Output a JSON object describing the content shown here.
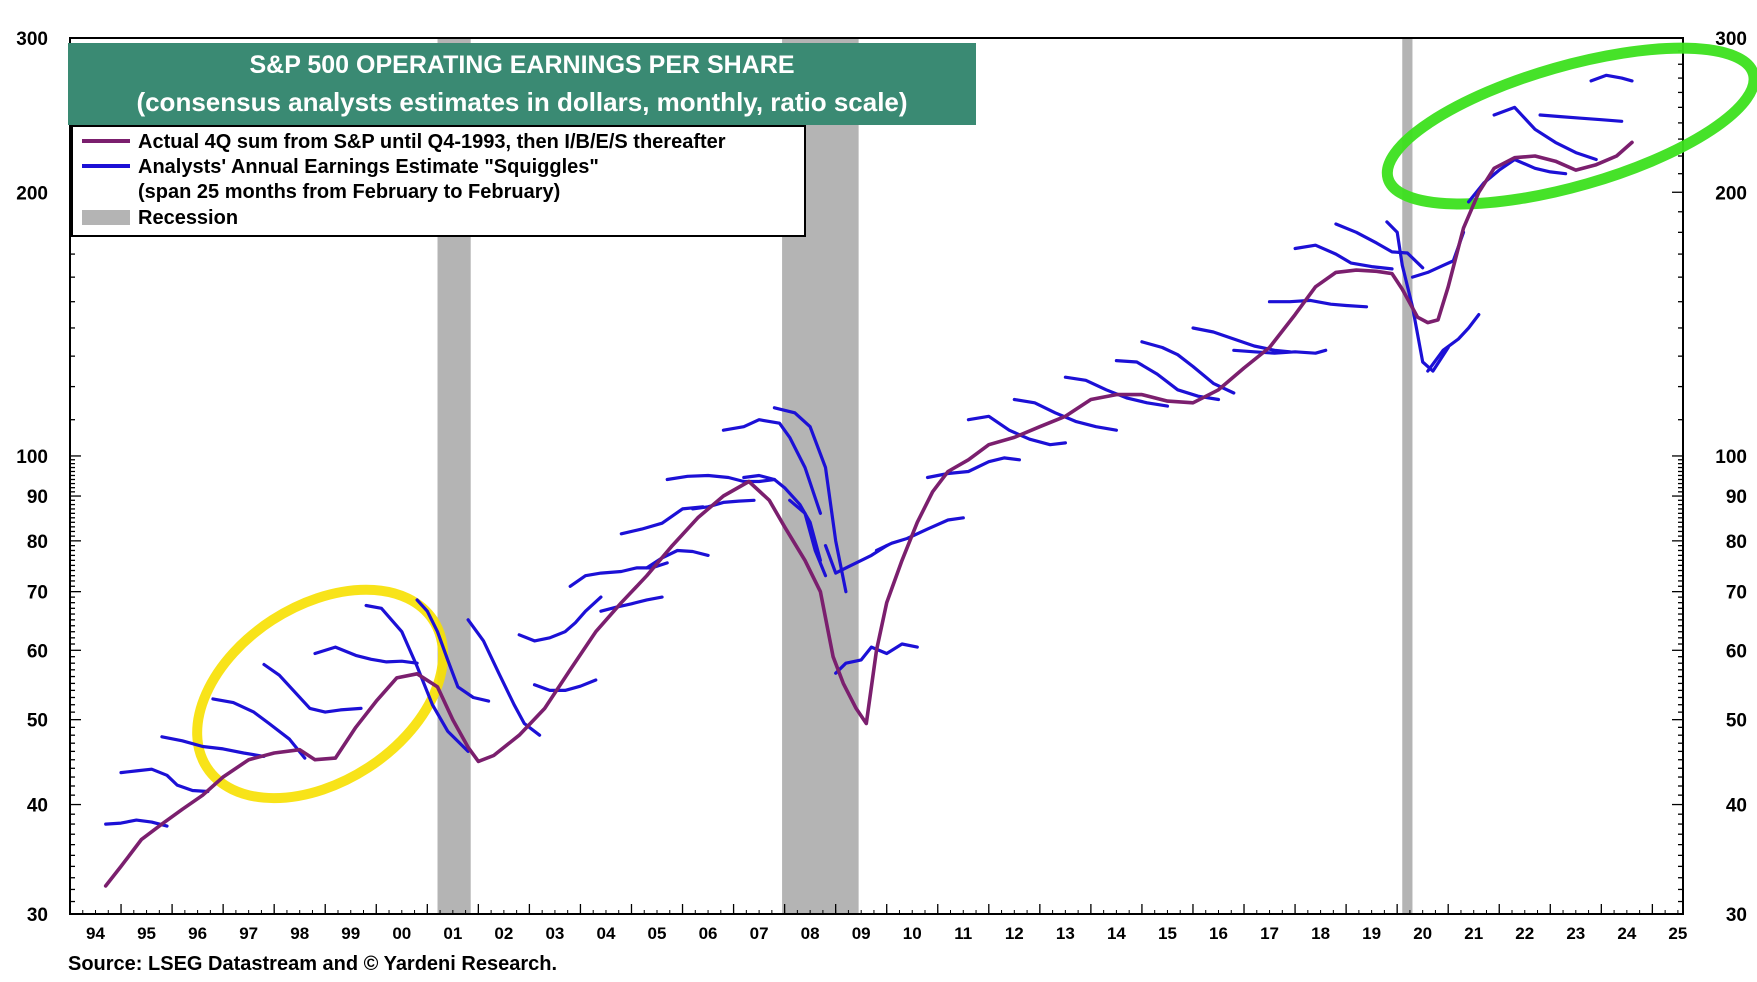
{
  "chart_data": {
    "type": "line",
    "title": "S&P 500 OPERATING EARNINGS PER SHARE",
    "subtitle": "(consensus analysts estimates in dollars, monthly, ratio scale)",
    "source": "Source: LSEG Datastream and © Yardeni Research.",
    "y_scale": "log",
    "ylim": [
      30,
      300
    ],
    "y_ticks": [
      30,
      40,
      50,
      60,
      70,
      80,
      90,
      100,
      200,
      300
    ],
    "y_tick_labels": [
      "30",
      "40",
      "50",
      "60",
      "70",
      "80",
      "90",
      "100",
      "200",
      "300"
    ],
    "xlim": [
      1994.0,
      2025.6
    ],
    "x_tick_labels": [
      "94",
      "95",
      "96",
      "97",
      "98",
      "99",
      "00",
      "01",
      "02",
      "03",
      "04",
      "05",
      "06",
      "07",
      "08",
      "09",
      "10",
      "11",
      "12",
      "13",
      "14",
      "15",
      "16",
      "17",
      "18",
      "19",
      "20",
      "21",
      "22",
      "23",
      "24",
      "25"
    ],
    "grid": false,
    "legend_position": "top-left",
    "legend": [
      {
        "label": "Actual 4Q sum from S&P until Q4-1993, then I/B/E/S thereafter",
        "kind": "line",
        "color": "#7b1f6e"
      },
      {
        "label": "Analysts' Annual Earnings Estimate \"Squiggles\"",
        "kind": "line",
        "color": "#1c10d6"
      },
      {
        "label": "(span 25 months from February to February)",
        "kind": "none",
        "color": ""
      },
      {
        "label": "Recession",
        "kind": "box",
        "color": "#b4b4b4"
      }
    ],
    "recessions": [
      [
        2001.2,
        2001.85
      ],
      [
        2007.95,
        2009.45
      ],
      [
        2020.1,
        2020.3
      ]
    ],
    "actual": {
      "name": "Actual 4Q sum from S&P until Q4-1993, then I/B/E/S thereafter",
      "color": "#7b1f6e",
      "x": [
        1994.7,
        1995.0,
        1995.4,
        1995.8,
        1996.2,
        1996.6,
        1997.0,
        1997.5,
        1998.0,
        1998.5,
        1998.8,
        1999.2,
        1999.6,
        2000.0,
        2000.4,
        2000.8,
        2001.2,
        2001.5,
        2001.8,
        2002.0,
        2002.3,
        2002.8,
        2003.3,
        2003.8,
        2004.3,
        2004.8,
        2005.3,
        2005.8,
        2006.3,
        2006.8,
        2007.3,
        2007.7,
        2008.0,
        2008.4,
        2008.7,
        2008.95,
        2009.15,
        2009.4,
        2009.6,
        2009.8,
        2010.0,
        2010.3,
        2010.6,
        2010.9,
        2011.2,
        2011.6,
        2012.0,
        2012.5,
        2013.0,
        2013.5,
        2014.0,
        2014.5,
        2015.0,
        2015.5,
        2016.0,
        2016.5,
        2017.0,
        2017.5,
        2018.0,
        2018.4,
        2018.8,
        2019.2,
        2019.6,
        2019.9,
        2020.1,
        2020.4,
        2020.6,
        2020.8,
        2021.0,
        2021.3,
        2021.6,
        2021.9,
        2022.3,
        2022.7,
        2023.1,
        2023.5,
        2023.9,
        2024.3,
        2024.6
      ],
      "y": [
        32.3,
        34.0,
        36.5,
        38.0,
        39.5,
        41.0,
        43.0,
        45.0,
        45.8,
        46.2,
        45.0,
        45.2,
        49.0,
        52.5,
        55.8,
        56.4,
        54.5,
        50.0,
        46.5,
        44.8,
        45.5,
        48.0,
        51.5,
        57.0,
        63.0,
        68.0,
        73.0,
        79.0,
        85.0,
        90.0,
        93.5,
        89.0,
        83.0,
        76.0,
        70.0,
        59.0,
        55.0,
        51.5,
        49.5,
        60.0,
        68.0,
        76.0,
        84.0,
        91.0,
        96.0,
        99.0,
        103.0,
        105.0,
        108.0,
        111.0,
        116.0,
        117.5,
        117.5,
        115.5,
        115.0,
        119.0,
        126.0,
        133.0,
        145.0,
        156.0,
        162.0,
        163.0,
        162.5,
        161.5,
        155.0,
        144.0,
        142.0,
        143.0,
        156.0,
        182.0,
        200.0,
        213.0,
        219.0,
        220.0,
        217.0,
        212.0,
        215.0,
        220.0,
        228.0
      ]
    },
    "squiggles": [
      {
        "x": [
          1994.7,
          1995.0,
          1995.3,
          1995.6,
          1995.9
        ],
        "y": [
          38.0,
          38.1,
          38.4,
          38.2,
          37.8
        ]
      },
      {
        "x": [
          1995.0,
          1995.3,
          1995.6,
          1995.9,
          1996.1,
          1996.4,
          1996.7
        ],
        "y": [
          43.5,
          43.7,
          43.9,
          43.2,
          42.1,
          41.5,
          41.4
        ]
      },
      {
        "x": [
          1995.8,
          1996.2,
          1996.6,
          1997.0,
          1997.4,
          1997.8
        ],
        "y": [
          47.8,
          47.3,
          46.6,
          46.3,
          45.8,
          45.4
        ]
      },
      {
        "x": [
          1996.8,
          1997.2,
          1997.6,
          1997.9,
          1998.3,
          1998.6
        ],
        "y": [
          52.8,
          52.3,
          51.0,
          49.5,
          47.5,
          45.2
        ]
      },
      {
        "x": [
          1997.8,
          1998.1,
          1998.4,
          1998.7,
          1999.0,
          1999.3,
          1999.7
        ],
        "y": [
          57.8,
          56.2,
          53.8,
          51.5,
          51.0,
          51.3,
          51.5
        ]
      },
      {
        "x": [
          1998.8,
          1999.2,
          1999.6,
          1999.9,
          2000.2,
          2000.5,
          2000.8
        ],
        "y": [
          59.5,
          60.5,
          59.2,
          58.6,
          58.2,
          58.3,
          58.0
        ]
      },
      {
        "x": [
          1999.8,
          2000.1,
          2000.5,
          2000.8,
          2001.1,
          2001.4,
          2001.8
        ],
        "y": [
          67.5,
          67.0,
          63.0,
          57.5,
          52.0,
          48.5,
          46.0
        ]
      },
      {
        "x": [
          2000.8,
          2001.0,
          2001.2,
          2001.4,
          2001.6,
          2001.9,
          2002.2
        ],
        "y": [
          68.5,
          66.5,
          63.0,
          58.5,
          54.5,
          53.0,
          52.5
        ]
      },
      {
        "x": [
          2001.8,
          2002.1,
          2002.4,
          2002.7,
          2002.9,
          2003.2
        ],
        "y": [
          65.0,
          61.5,
          56.5,
          52.0,
          49.5,
          48.0
        ]
      },
      {
        "x": [
          2002.8,
          2003.1,
          2003.4,
          2003.7,
          2003.9,
          2004.1,
          2004.4
        ],
        "y": [
          62.5,
          61.5,
          62.0,
          63.0,
          64.5,
          66.5,
          69.0
        ]
      },
      {
        "x": [
          2003.1,
          2003.4,
          2003.7,
          2004.0,
          2004.3
        ],
        "y": [
          54.8,
          54.0,
          54.0,
          54.6,
          55.5
        ]
      },
      {
        "x": [
          2003.8,
          2004.1,
          2004.4,
          2004.8,
          2005.1,
          2005.4,
          2005.7
        ],
        "y": [
          71.0,
          73.0,
          73.5,
          73.8,
          74.5,
          74.5,
          75.5
        ]
      },
      {
        "x": [
          2004.4,
          2004.7,
          2005.0,
          2005.3,
          2005.6
        ],
        "y": [
          66.5,
          67.2,
          67.8,
          68.5,
          69.0
        ]
      },
      {
        "x": [
          2004.8,
          2005.2,
          2005.6,
          2006.0,
          2006.4
        ],
        "y": [
          81.5,
          82.5,
          83.8,
          87.0,
          87.5
        ]
      },
      {
        "x": [
          2005.3,
          2005.6,
          2005.9,
          2006.2,
          2006.5
        ],
        "y": [
          74.5,
          76.5,
          78.0,
          77.8,
          77.0
        ]
      },
      {
        "x": [
          2005.7,
          2006.1,
          2006.5,
          2006.9,
          2007.2,
          2007.5,
          2007.8
        ],
        "y": [
          94.0,
          94.8,
          95.0,
          94.5,
          93.5,
          93.5,
          94.0
        ]
      },
      {
        "x": [
          2006.2,
          2006.5,
          2006.8,
          2007.1,
          2007.4
        ],
        "y": [
          87.0,
          87.5,
          88.5,
          88.8,
          89.0
        ]
      },
      {
        "x": [
          2006.8,
          2007.2,
          2007.5,
          2007.9,
          2008.1,
          2008.4,
          2008.7
        ],
        "y": [
          107.0,
          108.0,
          110.0,
          109.0,
          105.0,
          97.0,
          86.0
        ]
      },
      {
        "x": [
          2007.2,
          2007.5,
          2007.8,
          2008.0,
          2008.3,
          2008.5,
          2008.7
        ],
        "y": [
          94.5,
          95.0,
          94.0,
          92.0,
          88.0,
          84.0,
          76.0
        ]
      },
      {
        "x": [
          2007.8,
          2008.2,
          2008.5,
          2008.8,
          2009.0,
          2009.2
        ],
        "y": [
          113.5,
          112.0,
          108.0,
          97.0,
          80.0,
          70.0
        ]
      },
      {
        "x": [
          2008.1,
          2008.4,
          2008.6,
          2008.8
        ],
        "y": [
          89.0,
          86.0,
          78.0,
          73.0
        ]
      },
      {
        "x": [
          2008.8,
          2009.0,
          2009.2,
          2009.4,
          2009.7,
          2010.0
        ],
        "y": [
          79.0,
          73.5,
          74.5,
          75.5,
          77.0,
          79.0
        ]
      },
      {
        "x": [
          2009.0,
          2009.2,
          2009.5,
          2009.7,
          2010.0,
          2010.3,
          2010.6
        ],
        "y": [
          56.5,
          58.0,
          58.5,
          60.5,
          59.5,
          61.0,
          60.5
        ]
      },
      {
        "x": [
          2009.8,
          2010.1,
          2010.4,
          2010.8,
          2011.2,
          2011.5
        ],
        "y": [
          78.0,
          79.5,
          80.5,
          82.5,
          84.5,
          85.0
        ]
      },
      {
        "x": [
          2010.8,
          2011.2,
          2011.6,
          2012.0,
          2012.3,
          2012.6
        ],
        "y": [
          94.5,
          95.5,
          96.0,
          98.5,
          99.5,
          99.0
        ]
      },
      {
        "x": [
          2011.6,
          2012.0,
          2012.4,
          2012.8,
          2013.2,
          2013.5
        ],
        "y": [
          110.0,
          111.0,
          107.0,
          104.5,
          103.0,
          103.5
        ]
      },
      {
        "x": [
          2012.5,
          2012.9,
          2013.3,
          2013.7,
          2014.1,
          2014.5
        ],
        "y": [
          116.0,
          115.0,
          112.0,
          109.5,
          108.0,
          107.0
        ]
      },
      {
        "x": [
          2013.5,
          2013.9,
          2014.3,
          2014.7,
          2015.1,
          2015.5
        ],
        "y": [
          123.0,
          122.0,
          119.0,
          116.5,
          115.0,
          114.0
        ]
      },
      {
        "x": [
          2014.5,
          2014.9,
          2015.3,
          2015.7,
          2016.1,
          2016.5
        ],
        "y": [
          128.5,
          128.0,
          124.0,
          119.0,
          117.0,
          116.0
        ]
      },
      {
        "x": [
          2015.0,
          2015.4,
          2015.7,
          2016.0,
          2016.4,
          2016.8
        ],
        "y": [
          135.0,
          133.0,
          130.5,
          126.5,
          121.0,
          118.0
        ]
      },
      {
        "x": [
          2016.0,
          2016.4,
          2016.8,
          2017.2,
          2017.6,
          2017.9
        ],
        "y": [
          140.0,
          138.5,
          136.0,
          133.5,
          132.0,
          131.5
        ]
      },
      {
        "x": [
          2016.8,
          2017.2,
          2017.6,
          2018.0,
          2018.4,
          2018.6
        ],
        "y": [
          132.0,
          131.5,
          131.0,
          131.5,
          131.0,
          132.0
        ]
      },
      {
        "x": [
          2017.5,
          2017.9,
          2018.3,
          2018.7,
          2019.0,
          2019.4
        ],
        "y": [
          150.0,
          150.0,
          150.5,
          149.0,
          148.5,
          148.0
        ]
      },
      {
        "x": [
          2018.0,
          2018.4,
          2018.8,
          2019.1,
          2019.5,
          2019.9
        ],
        "y": [
          172.5,
          174.0,
          170.0,
          166.0,
          164.5,
          163.5
        ]
      },
      {
        "x": [
          2018.8,
          2019.2,
          2019.6,
          2019.9,
          2020.2,
          2020.5
        ],
        "y": [
          184.0,
          180.0,
          175.0,
          171.0,
          170.5,
          164.0
        ]
      },
      {
        "x": [
          2019.8,
          2020.0,
          2020.1,
          2020.3,
          2020.5,
          2020.7,
          2021.0
        ],
        "y": [
          185.0,
          180.0,
          165.0,
          148.0,
          128.0,
          125.0,
          133.0
        ]
      },
      {
        "x": [
          2020.3,
          2020.6,
          2020.9,
          2021.1,
          2021.3
        ],
        "y": [
          160.0,
          162.0,
          165.0,
          167.0,
          180.0
        ]
      },
      {
        "x": [
          2020.6,
          2020.9,
          2021.2,
          2021.4,
          2021.6
        ],
        "y": [
          125.0,
          132.0,
          136.0,
          140.0,
          145.0
        ]
      },
      {
        "x": [
          2021.4,
          2021.7,
          2022.0,
          2022.3,
          2022.7,
          2023.0,
          2023.3
        ],
        "y": [
          195.0,
          205.0,
          212.0,
          218.0,
          213.0,
          211.0,
          210.0
        ]
      },
      {
        "x": [
          2021.9,
          2022.3,
          2022.7,
          2023.1,
          2023.5,
          2023.9
        ],
        "y": [
          245.0,
          250.0,
          236.0,
          228.0,
          222.0,
          218.0
        ]
      },
      {
        "x": [
          2022.8,
          2023.2,
          2023.6,
          2024.0,
          2024.4
        ],
        "y": [
          245.0,
          244.0,
          243.0,
          242.0,
          241.0
        ]
      },
      {
        "x": [
          2023.8,
          2024.1,
          2024.4,
          2024.6
        ],
        "y": [
          268.0,
          272.0,
          270.0,
          268.0
        ]
      }
    ],
    "annotations": [
      {
        "kind": "ellipse-highlight",
        "color": "#f7e000",
        "center_x": 1998.9,
        "center_y": 53.5,
        "note": ""
      },
      {
        "kind": "ellipse-highlight",
        "color": "#3ce01e",
        "center_x": 2023.4,
        "center_y": 238.0,
        "note": ""
      }
    ]
  }
}
